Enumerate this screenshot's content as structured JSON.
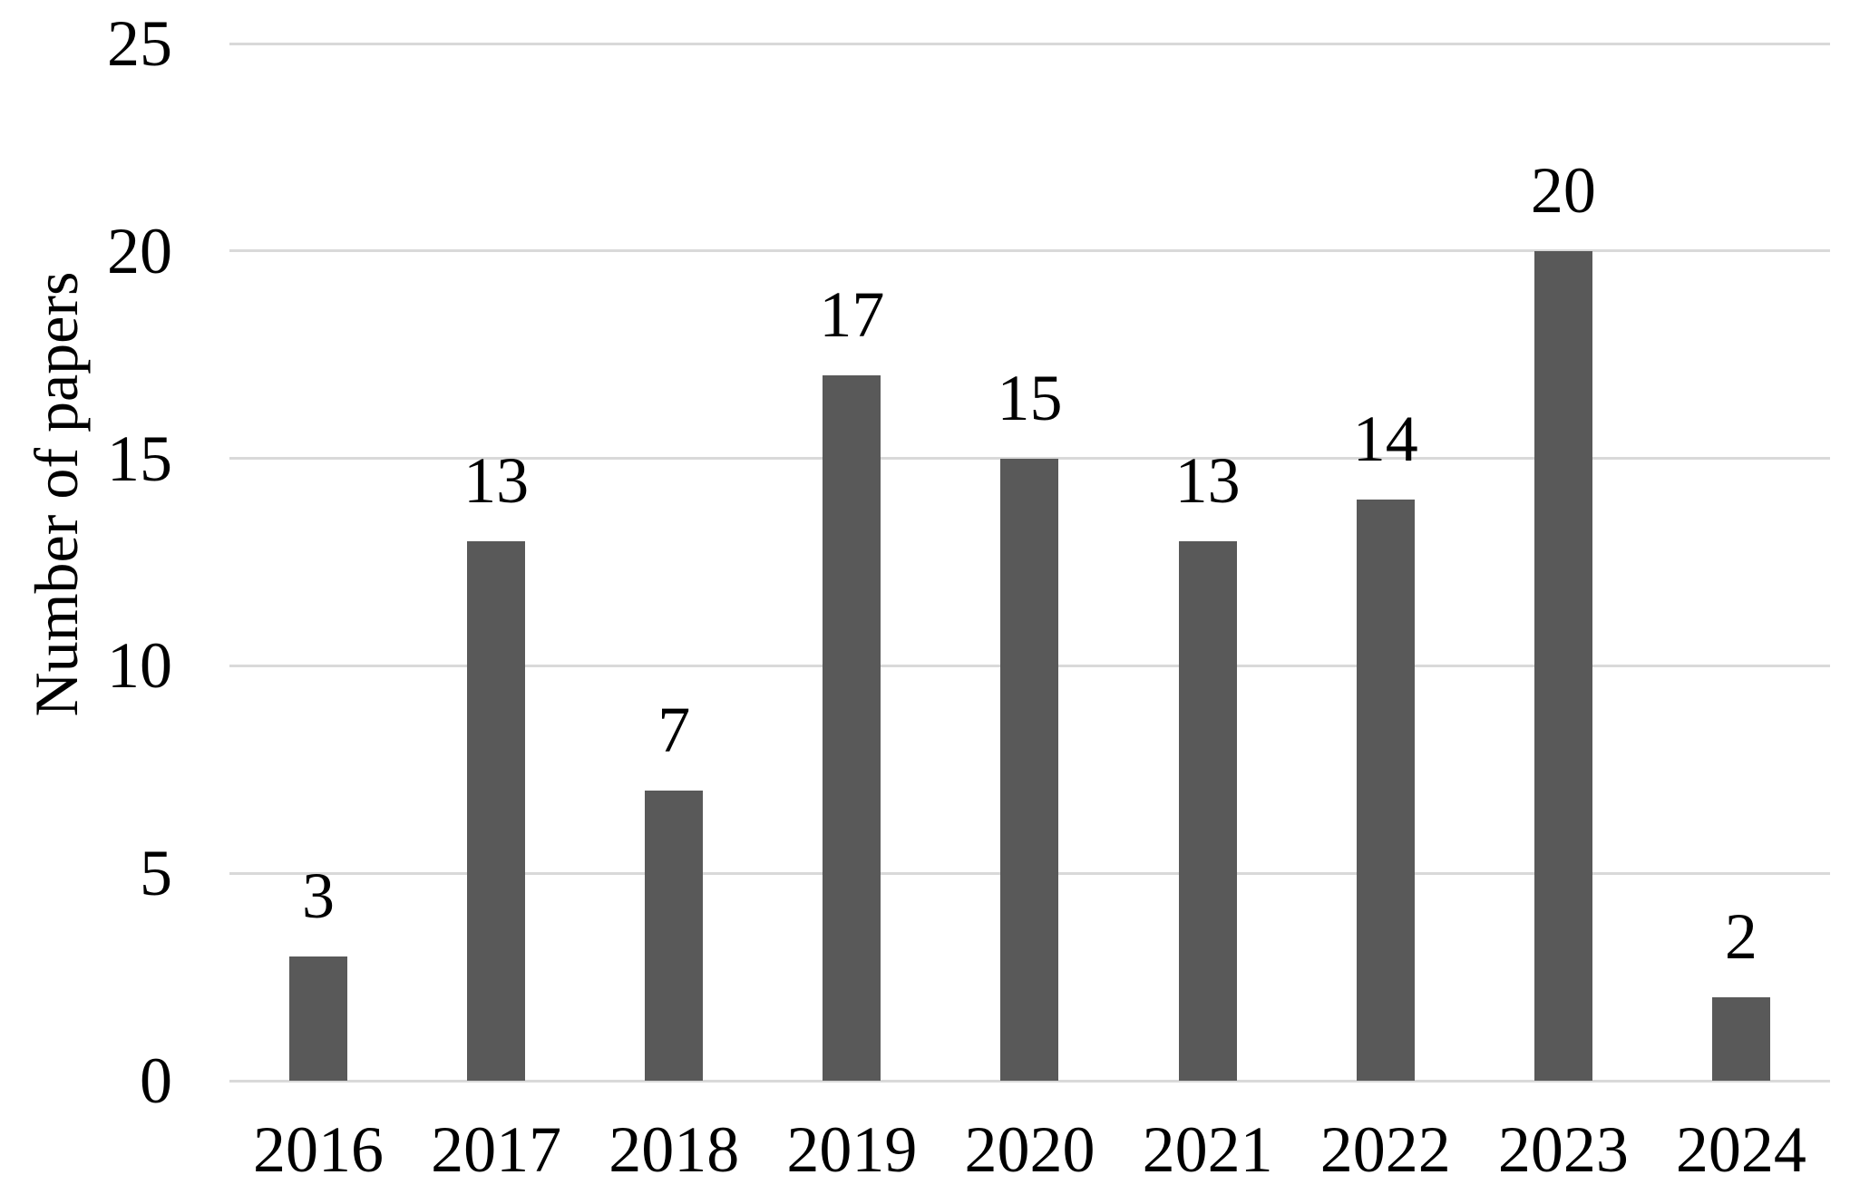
{
  "chart_data": {
    "type": "bar",
    "title": "",
    "xlabel": "",
    "ylabel": "Number of papers",
    "categories": [
      "2016",
      "2017",
      "2018",
      "2019",
      "2020",
      "2021",
      "2022",
      "2023",
      "2024"
    ],
    "values": [
      3,
      13,
      7,
      17,
      15,
      13,
      14,
      20,
      2
    ],
    "data_labels": [
      "3",
      "13",
      "7",
      "17",
      "15",
      "13",
      "14",
      "20",
      "2"
    ],
    "ylim": [
      0,
      25
    ],
    "yticks": [
      0,
      5,
      10,
      15,
      20,
      25
    ],
    "grid": "horizontal",
    "legend": "none",
    "colors": {
      "bar": "#595959",
      "gridline": "#d9d9d9",
      "text": "#000000",
      "background": "#ffffff"
    }
  }
}
